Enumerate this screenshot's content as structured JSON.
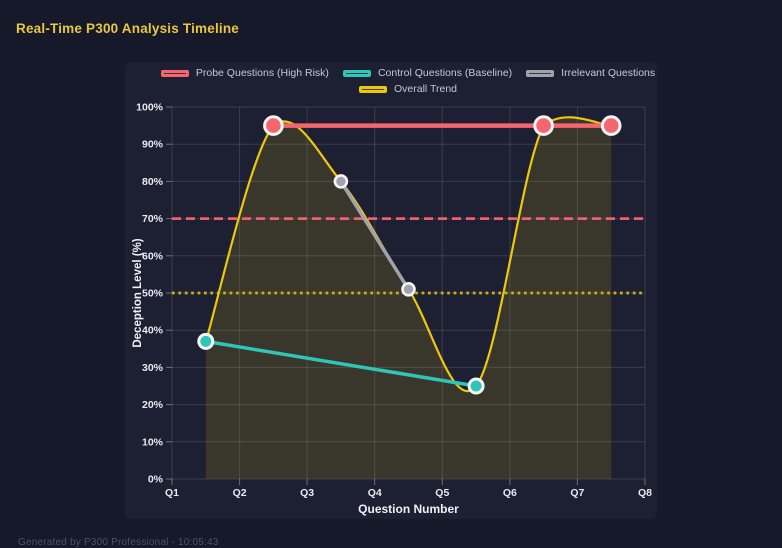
{
  "page": {
    "title": "Real-Time P300 Analysis Timeline",
    "footer": "Generated by P300 Professional - 10:05:43"
  },
  "colors": {
    "page_bg": "#161929",
    "panel_bg": "#1c2032",
    "title": "#e9c73e",
    "grid": "rgba(255,255,255,0.13)",
    "tick": "rgba(255,255,255,0.35)",
    "axis_text": "#e8eaf0",
    "axis_title": "#eef0f5",
    "legend_text": "#c3c8d3",
    "point_border": "#f4f5f7",
    "footer_text": "#4b5264"
  },
  "chart_data": {
    "type": "line",
    "xlabel": "Question Number",
    "ylabel": "Deception Level (%)",
    "x_ticks": [
      "Q1",
      "Q2",
      "Q3",
      "Q4",
      "Q5",
      "Q6",
      "Q7",
      "Q8"
    ],
    "x_range": [
      1,
      8
    ],
    "ylim": [
      0,
      100
    ],
    "y_tick_step": 10,
    "y_ticks": [
      "0%",
      "10%",
      "20%",
      "30%",
      "40%",
      "50%",
      "60%",
      "70%",
      "80%",
      "90%",
      "100%"
    ],
    "grid": true,
    "legend_position": "top",
    "series": [
      {
        "name": "Probe Questions (High Risk)",
        "color": "#f5656e",
        "x": [
          2.5,
          6.5,
          7.5
        ],
        "y": [
          95,
          95,
          95
        ],
        "line_width": 4.5,
        "smooth": false,
        "fill": false,
        "point_radius": 8.8,
        "point_border": 3
      },
      {
        "name": "Control Questions (Baseline)",
        "color": "#2ec6b6",
        "x": [
          1.5,
          5.5
        ],
        "y": [
          37,
          25
        ],
        "line_width": 3.5,
        "smooth": false,
        "fill": false,
        "point_radius": 7,
        "point_border": 3
      },
      {
        "name": "Irrelevant Questions",
        "color": "#a2a2aa",
        "x": [
          3.5,
          4.5
        ],
        "y": [
          80,
          51
        ],
        "line_width": 3.5,
        "smooth": false,
        "fill": false,
        "point_radius": 6,
        "point_border": 2.6
      },
      {
        "name": "Overall Trend",
        "color": "#edc70e",
        "x": [
          1.5,
          2.5,
          3.5,
          4.5,
          5.5,
          6.5,
          7.5
        ],
        "y": [
          37,
          95,
          80,
          51,
          25,
          95,
          95
        ],
        "line_width": 2.2,
        "smooth": true,
        "fill": true,
        "fill_opacity": 0.14,
        "point_radius": 0,
        "point_border": 0
      }
    ],
    "thresholds": [
      {
        "value": 70,
        "color": "#f25f6e",
        "dash": "9 5",
        "width": 2.7
      },
      {
        "value": 50,
        "color": "#d4b00e",
        "dash": "2.7 3.7",
        "width": 2.7
      }
    ]
  }
}
